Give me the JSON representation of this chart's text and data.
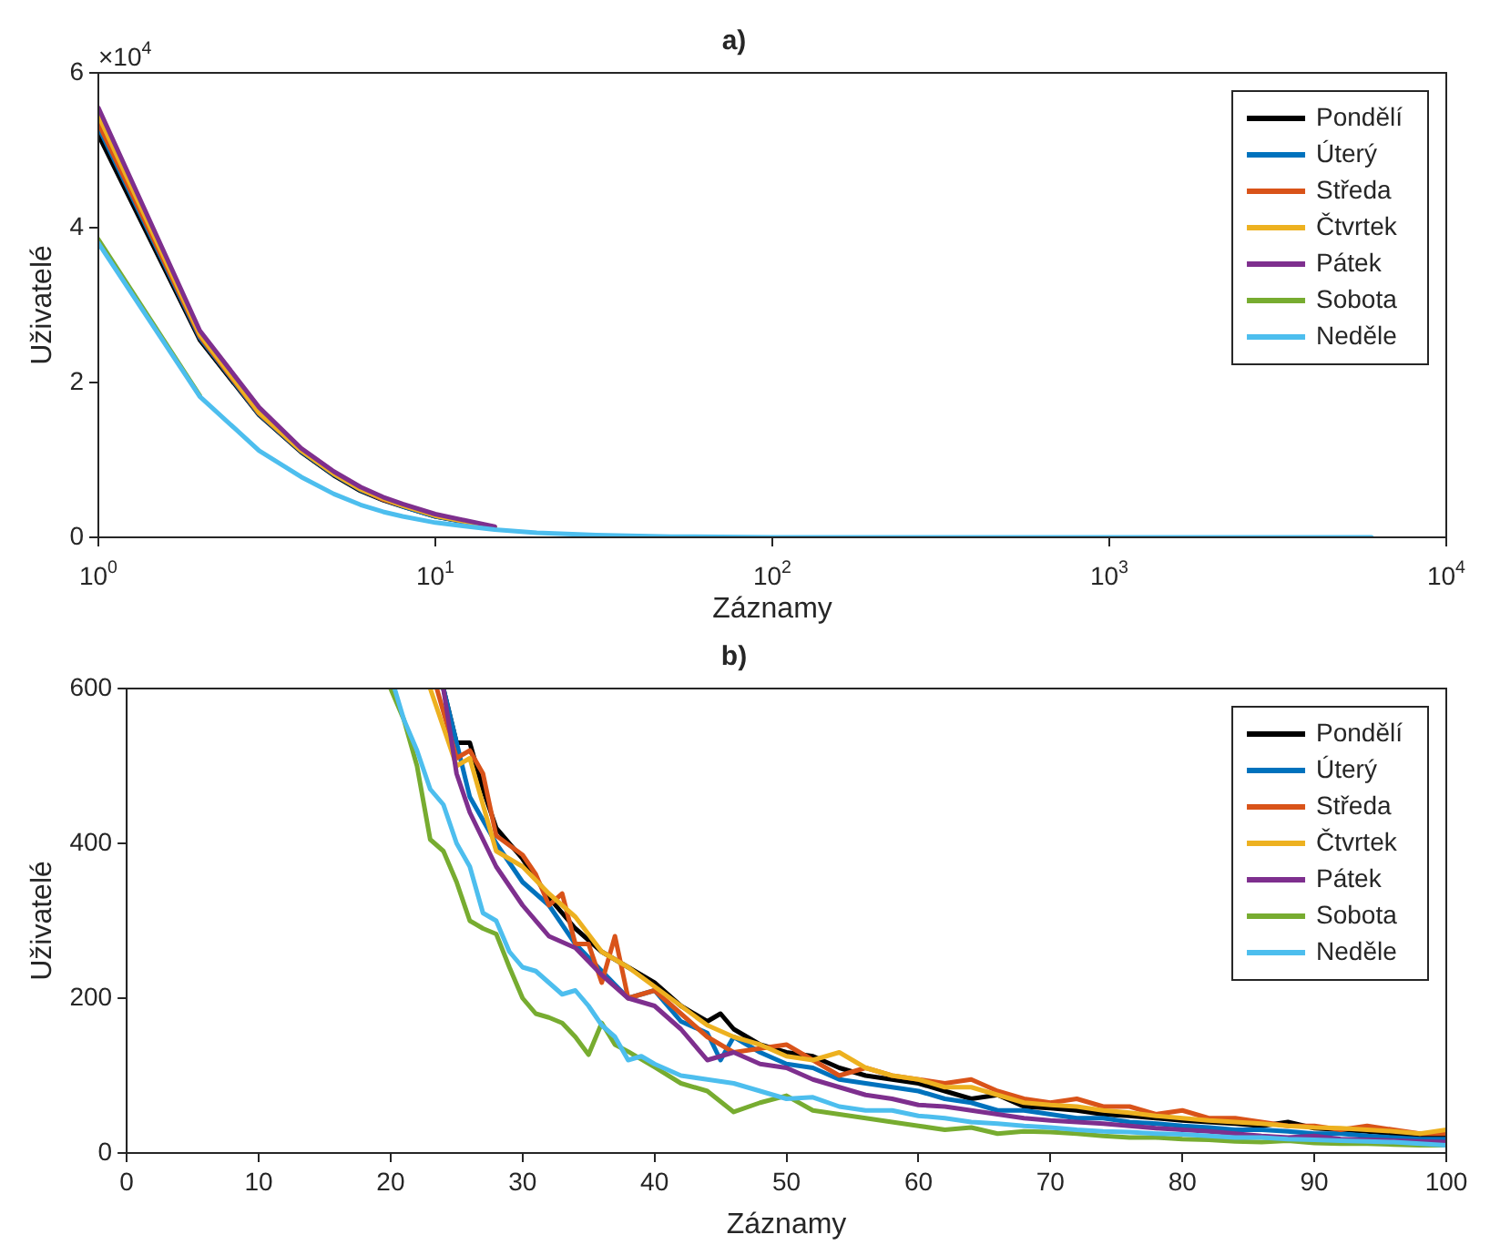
{
  "chart_data": [
    {
      "type": "line",
      "title": "a)",
      "xlabel": "Záznamy",
      "ylabel": "Uživatelé",
      "log": "x",
      "legend": "top right",
      "annotations": [
        "×10$^{4}$"
      ],
      "x": [
        1,
        2,
        3,
        4,
        5,
        6,
        7,
        8,
        10,
        15,
        20,
        30,
        50,
        100,
        1000,
        6000
      ],
      "xlim": [
        1,
        10000
      ],
      "xticks": [
        {
          "value": 1,
          "label": "10$^{0}$"
        },
        {
          "value": 10,
          "label": "10$^{1}$"
        },
        {
          "value": 100,
          "label": "10$^{2}$"
        },
        {
          "value": 1000,
          "label": "10$^{3}$"
        },
        {
          "value": 10000,
          "label": "10$^{4}$"
        }
      ],
      "ylim": [
        0,
        6
      ],
      "yticks": [
        0,
        2,
        4,
        6
      ],
      "series": [
        {
          "name": "Pondělí",
          "color": "#000000",
          "values": [
            5.2,
            2.55,
            1.58,
            1.1,
            0.8,
            0.6,
            0.48,
            0.4,
            0.27,
            0.13,
            null,
            null,
            null,
            null,
            null,
            null
          ]
        },
        {
          "name": "Úterý",
          "color": "#0072bd",
          "values": [
            5.3,
            2.58,
            1.59,
            1.11,
            0.81,
            0.61,
            0.49,
            0.4,
            0.27,
            0.13,
            null,
            null,
            null,
            null,
            null,
            null
          ]
        },
        {
          "name": "Středa",
          "color": "#d95319",
          "values": [
            5.35,
            2.6,
            1.6,
            1.12,
            0.82,
            0.62,
            0.49,
            0.41,
            0.28,
            0.13,
            null,
            null,
            null,
            null,
            null,
            null
          ]
        },
        {
          "name": "Čtvrtek",
          "color": "#edb120",
          "values": [
            5.45,
            2.62,
            1.61,
            1.12,
            0.82,
            0.62,
            0.5,
            0.41,
            0.28,
            0.13,
            null,
            null,
            null,
            null,
            null,
            null
          ]
        },
        {
          "name": "Pátek",
          "color": "#7e2f8e",
          "values": [
            5.55,
            2.67,
            1.68,
            1.15,
            0.85,
            0.65,
            0.52,
            0.43,
            0.3,
            0.14,
            null,
            null,
            null,
            null,
            null,
            null
          ]
        },
        {
          "name": "Sobota",
          "color": "#77ac30",
          "values": [
            3.85,
            1.83,
            null,
            null,
            null,
            null,
            null,
            null,
            null,
            null,
            null,
            null,
            null,
            null,
            null,
            null
          ]
        },
        {
          "name": "Neděle",
          "color": "#4dbeee",
          "values": [
            3.8,
            1.82,
            1.12,
            0.78,
            0.56,
            0.42,
            0.33,
            0.27,
            0.19,
            0.1,
            0.06,
            0.03,
            0.01,
            0,
            0,
            0
          ]
        }
      ]
    },
    {
      "type": "line",
      "title": "b)",
      "xlabel": "Záznamy",
      "ylabel": "Uživatelé",
      "legend": "top right",
      "xlim": [
        0,
        100
      ],
      "xticks": [
        0,
        10,
        20,
        30,
        40,
        50,
        60,
        70,
        80,
        90,
        100
      ],
      "ylim": [
        0,
        600
      ],
      "yticks": [
        0,
        200,
        400,
        600
      ],
      "series": [
        {
          "name": "Pondělí",
          "color": "#000000",
          "x": [
            24,
            25,
            26,
            27,
            28,
            30,
            32,
            34,
            36,
            38,
            40,
            42,
            44,
            45,
            46,
            48,
            50,
            52,
            54,
            56,
            58,
            60,
            62,
            64,
            66,
            68,
            70,
            72,
            74,
            76,
            78,
            80,
            82,
            84,
            86,
            88,
            90,
            92,
            94,
            96,
            98,
            100
          ],
          "values": [
            600,
            530,
            530,
            470,
            420,
            380,
            330,
            290,
            260,
            240,
            220,
            190,
            170,
            180,
            160,
            140,
            130,
            125,
            110,
            100,
            95,
            90,
            80,
            70,
            75,
            60,
            58,
            55,
            50,
            48,
            45,
            42,
            40,
            38,
            35,
            40,
            32,
            30,
            28,
            25,
            22,
            20
          ]
        },
        {
          "name": "Úterý",
          "color": "#0072bd",
          "x": [
            24,
            26,
            28,
            30,
            32,
            34,
            36,
            38,
            40,
            42,
            44,
            45,
            46,
            48,
            50,
            52,
            54,
            56,
            58,
            60,
            62,
            64,
            66,
            68,
            70,
            72,
            74,
            76,
            78,
            80,
            82,
            84,
            86,
            88,
            90,
            92,
            94,
            96,
            98,
            100
          ],
          "values": [
            600,
            460,
            400,
            350,
            320,
            270,
            235,
            200,
            210,
            170,
            155,
            120,
            150,
            130,
            115,
            110,
            95,
            90,
            85,
            80,
            70,
            65,
            55,
            55,
            50,
            45,
            45,
            40,
            38,
            35,
            33,
            30,
            30,
            28,
            25,
            25,
            22,
            20,
            18,
            18
          ]
        },
        {
          "name": "Středa",
          "color": "#d95319",
          "x": [
            23.5,
            25,
            26,
            27,
            28,
            30,
            31,
            32,
            33,
            34,
            35,
            36,
            37,
            38,
            40,
            42,
            44,
            46,
            48,
            50,
            52,
            54,
            56,
            58,
            60,
            62,
            64,
            66,
            68,
            70,
            72,
            74,
            76,
            78,
            80,
            82,
            84,
            86,
            88,
            90,
            92,
            94,
            96,
            98,
            100
          ],
          "values": [
            600,
            510,
            520,
            490,
            410,
            385,
            360,
            320,
            335,
            270,
            270,
            220,
            280,
            200,
            210,
            180,
            150,
            130,
            135,
            140,
            120,
            100,
            110,
            100,
            95,
            90,
            95,
            80,
            70,
            65,
            70,
            60,
            60,
            50,
            55,
            45,
            45,
            40,
            35,
            35,
            30,
            35,
            30,
            25,
            25
          ]
        },
        {
          "name": "Čtvrtek",
          "color": "#edb120",
          "x": [
            23,
            25,
            26,
            28,
            30,
            32,
            34,
            36,
            38,
            40,
            42,
            44,
            46,
            48,
            50,
            52,
            54,
            56,
            58,
            60,
            62,
            64,
            66,
            68,
            70,
            72,
            74,
            76,
            78,
            80,
            82,
            84,
            86,
            88,
            90,
            92,
            94,
            96,
            98,
            100
          ],
          "values": [
            600,
            500,
            510,
            390,
            370,
            335,
            305,
            260,
            240,
            215,
            190,
            165,
            150,
            140,
            125,
            120,
            130,
            110,
            100,
            95,
            85,
            85,
            75,
            65,
            62,
            60,
            55,
            52,
            48,
            45,
            42,
            40,
            38,
            35,
            33,
            32,
            30,
            28,
            25,
            30
          ]
        },
        {
          "name": "Pátek",
          "color": "#7e2f8e",
          "x": [
            24,
            25,
            26,
            28,
            30,
            32,
            34,
            36,
            38,
            40,
            42,
            44,
            46,
            48,
            50,
            52,
            54,
            56,
            58,
            60,
            62,
            64,
            66,
            68,
            70,
            72,
            74,
            76,
            78,
            80,
            82,
            84,
            86,
            88,
            90,
            92,
            94,
            96,
            98,
            100
          ],
          "values": [
            600,
            490,
            440,
            370,
            320,
            280,
            265,
            230,
            200,
            190,
            160,
            120,
            130,
            115,
            110,
            95,
            85,
            75,
            70,
            62,
            60,
            55,
            50,
            45,
            42,
            40,
            38,
            35,
            32,
            30,
            28,
            25,
            22,
            20,
            22,
            18,
            17,
            16,
            15,
            14
          ]
        },
        {
          "name": "Sobota",
          "color": "#77ac30",
          "x": [
            20,
            21,
            22,
            23,
            24,
            25,
            26,
            27,
            28,
            29,
            30,
            31,
            32,
            33,
            34,
            35,
            36,
            37,
            38,
            40,
            42,
            44,
            46,
            48,
            50,
            52,
            54,
            56,
            58,
            60,
            62,
            64,
            66,
            68,
            70,
            72,
            74,
            76,
            78,
            80,
            82,
            84,
            86,
            88,
            90,
            92,
            94,
            96,
            98,
            100
          ],
          "values": [
            600,
            560,
            500,
            405,
            390,
            350,
            300,
            290,
            283,
            240,
            200,
            180,
            175,
            168,
            150,
            127,
            168,
            140,
            131,
            111,
            90,
            80,
            53,
            65,
            74,
            55,
            50,
            45,
            40,
            35,
            30,
            33,
            25,
            28,
            27,
            25,
            22,
            20,
            20,
            18,
            17,
            15,
            14,
            16,
            13,
            12,
            12,
            11,
            10,
            10
          ]
        },
        {
          "name": "Neděle",
          "color": "#4dbeee",
          "x": [
            20.3,
            21,
            22,
            23,
            24,
            25,
            26,
            27,
            28,
            29,
            30,
            31,
            32,
            33,
            34,
            35,
            36,
            37,
            38,
            39,
            40,
            42,
            44,
            46,
            48,
            50,
            52,
            54,
            56,
            58,
            60,
            62,
            64,
            66,
            68,
            70,
            72,
            74,
            76,
            78,
            80,
            82,
            84,
            86,
            88,
            90,
            92,
            94,
            96,
            98,
            100
          ],
          "values": [
            600,
            560,
            520,
            470,
            450,
            400,
            370,
            310,
            300,
            260,
            240,
            235,
            220,
            205,
            210,
            190,
            165,
            150,
            120,
            125,
            115,
            100,
            95,
            90,
            80,
            70,
            72,
            60,
            55,
            55,
            48,
            45,
            40,
            38,
            35,
            33,
            30,
            28,
            27,
            25,
            24,
            22,
            20,
            20,
            18,
            17,
            16,
            15,
            14,
            12,
            10
          ]
        }
      ]
    }
  ]
}
